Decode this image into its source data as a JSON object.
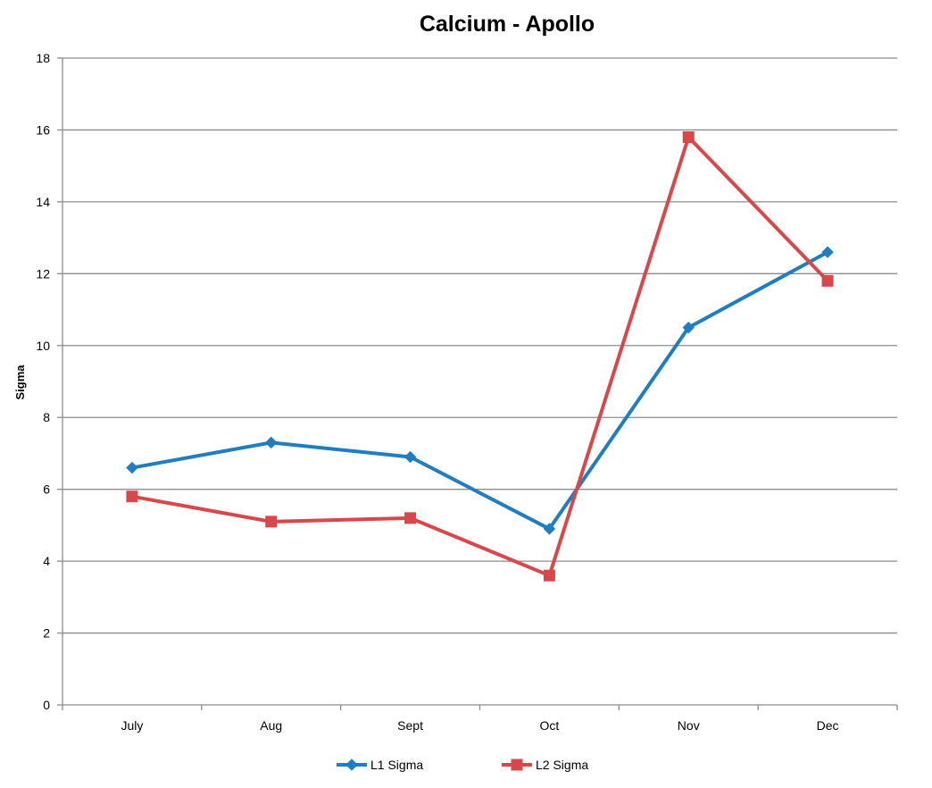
{
  "chart_data": {
    "type": "line",
    "title": "Calcium - Apollo",
    "xlabel": "",
    "ylabel": "Sigma",
    "categories": [
      "July",
      "Aug",
      "Sept",
      "Oct",
      "Nov",
      "Dec"
    ],
    "ylim": [
      0,
      18
    ],
    "yticks": [
      0,
      2,
      4,
      6,
      8,
      10,
      12,
      14,
      16,
      18
    ],
    "grid": true,
    "legend_position": "bottom",
    "series": [
      {
        "name": "L1 Sigma",
        "color": "#1F7DC1",
        "marker": "diamond",
        "values": [
          6.6,
          7.3,
          6.9,
          4.9,
          10.5,
          12.6
        ]
      },
      {
        "name": "L2 Sigma",
        "color": "#D9474B",
        "marker": "square",
        "values": [
          5.8,
          5.1,
          5.2,
          3.6,
          15.8,
          11.8
        ]
      }
    ]
  }
}
